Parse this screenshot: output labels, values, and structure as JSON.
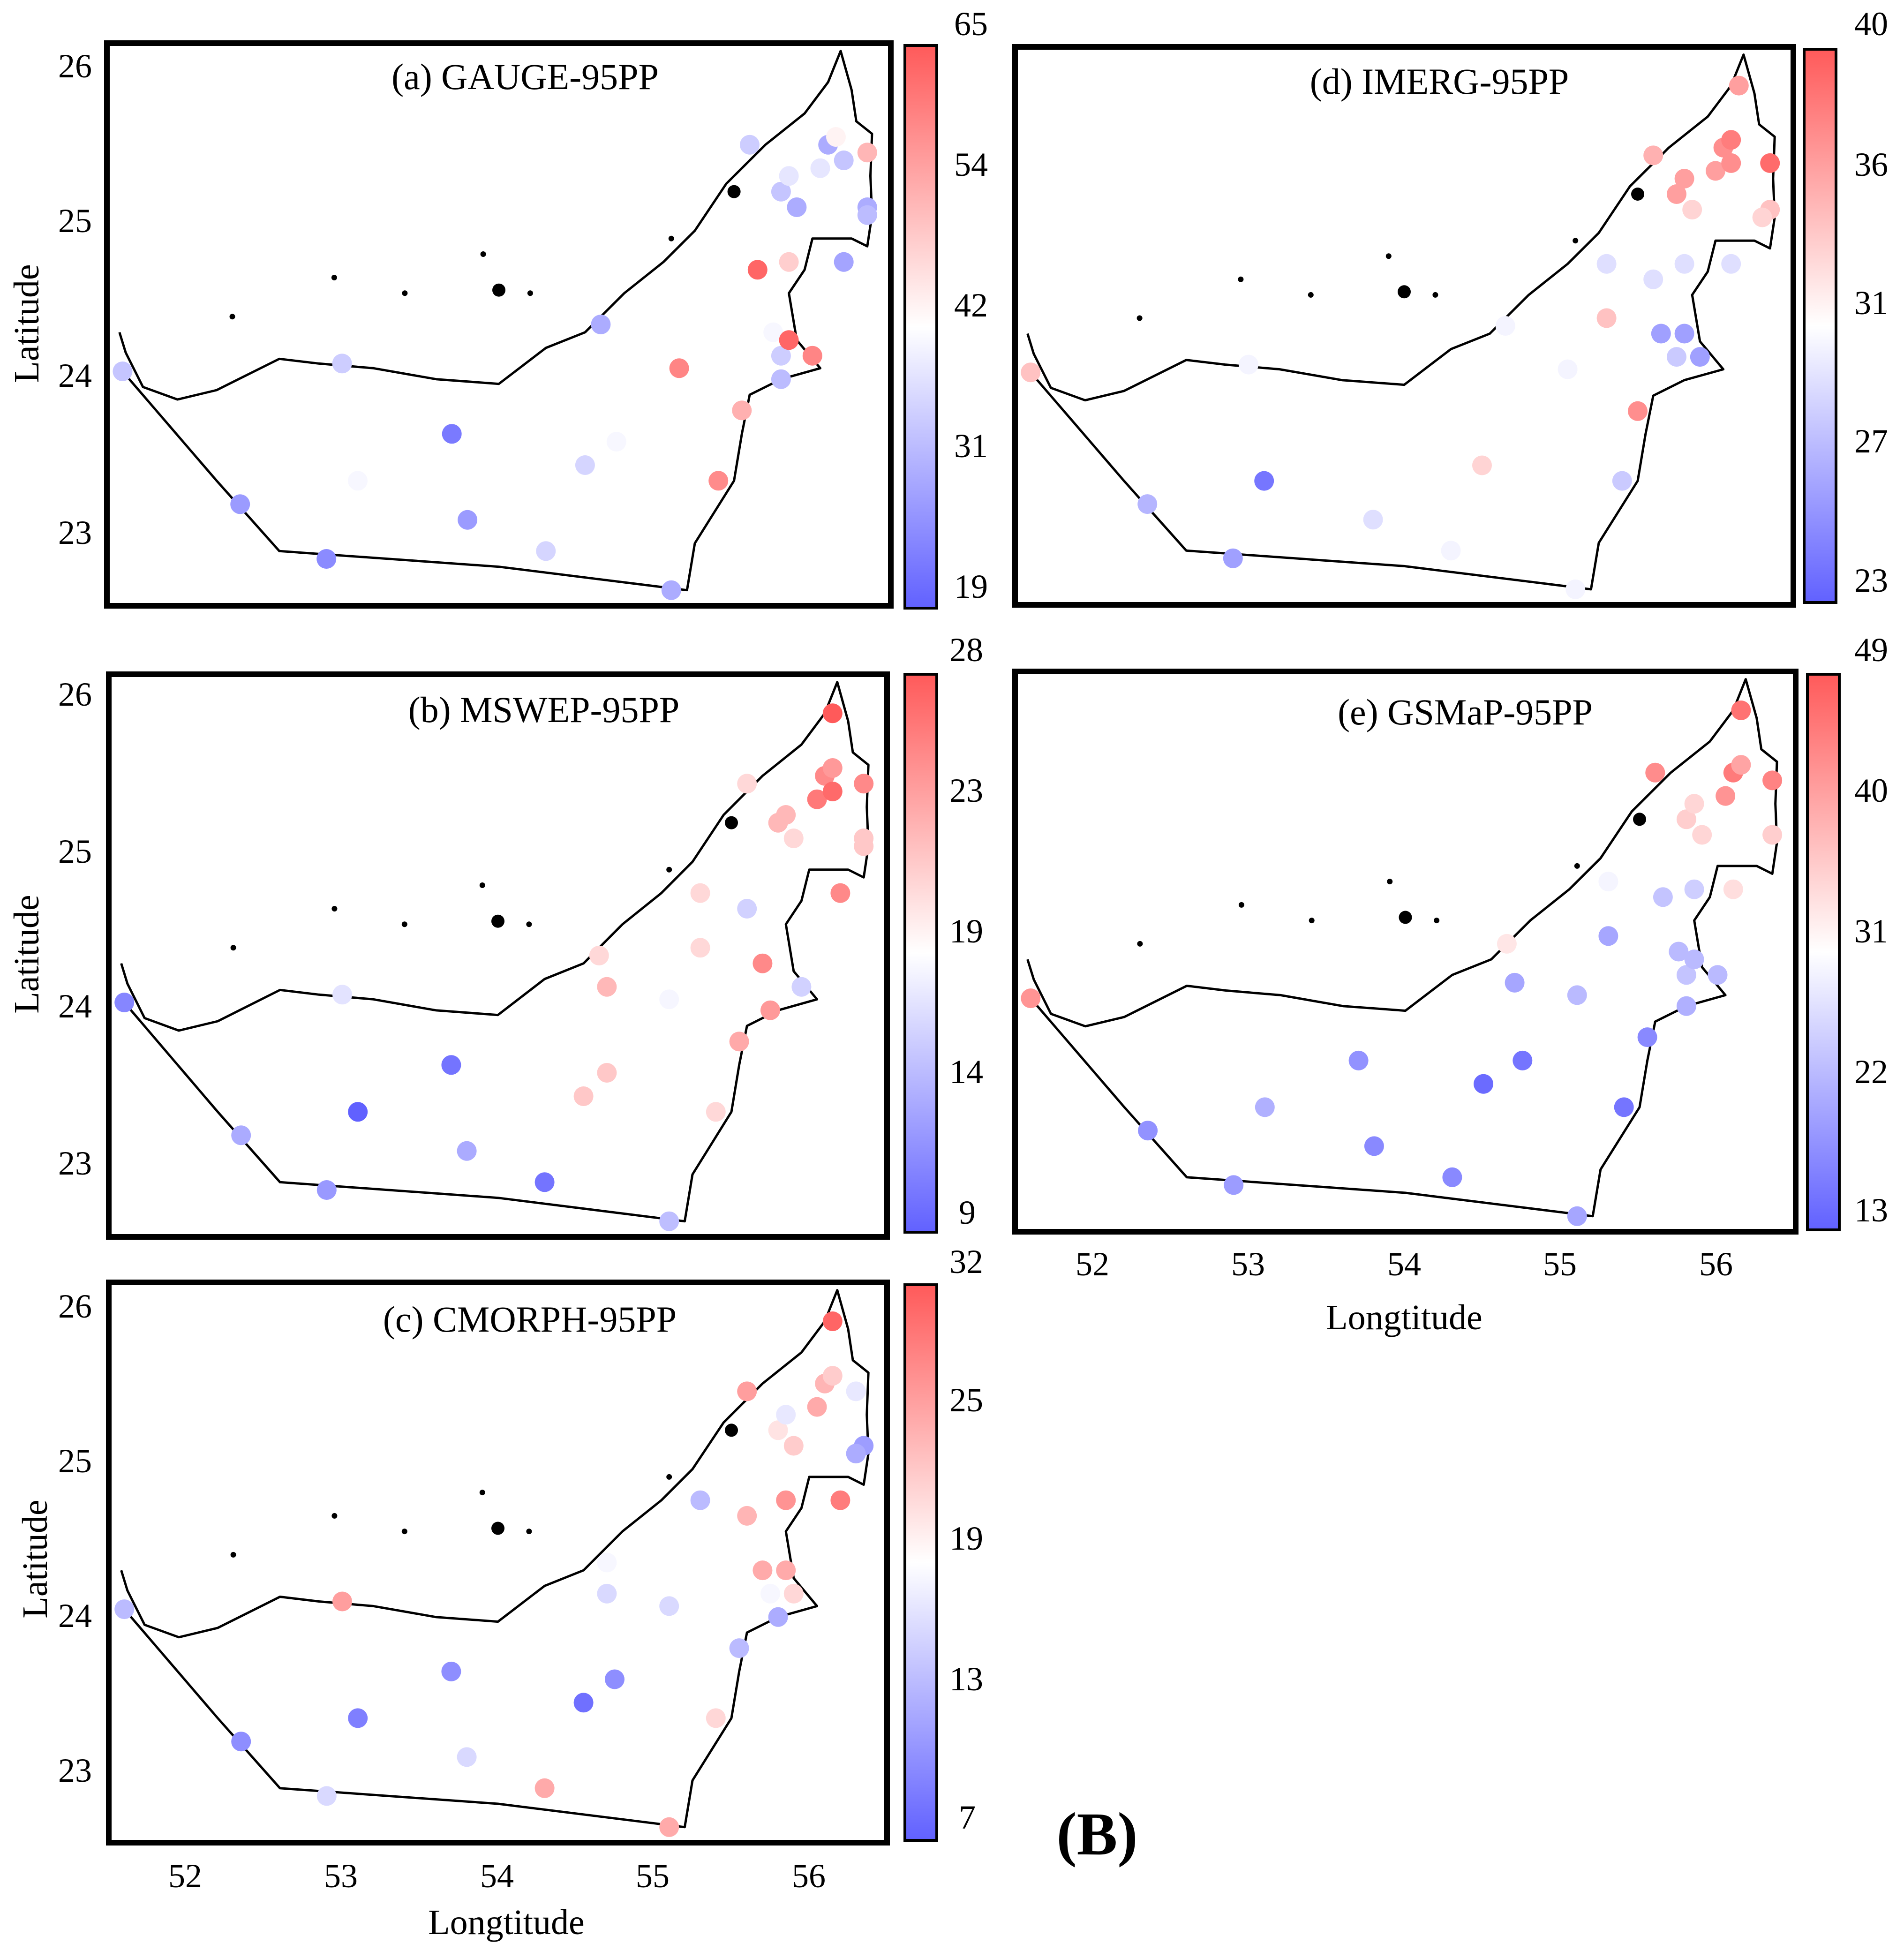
{
  "figure_label": "(B)",
  "colors": {
    "low": "#6161ff",
    "mid": "#ffffff",
    "high": "#ff5a5a",
    "frame": "#000000"
  },
  "axes": {
    "lon_ticks": [
      52,
      53,
      54,
      55,
      56
    ],
    "lat_ticks": [
      23,
      24,
      25,
      26
    ],
    "lon_range": [
      51.5,
      56.5
    ],
    "lat_range": [
      22.6,
      26.2
    ],
    "xlabel": "Longtitude",
    "ylabel": "Latitude"
  },
  "panels": [
    {
      "title": "(a) GAUGE-95PP",
      "colorbar": {
        "ticks": [
          "65",
          "54",
          "42",
          "31",
          "19"
        ],
        "min": 19,
        "max": 65,
        "mid": 38
      },
      "stations": [
        [
          51.6,
          24.1,
          31
        ],
        [
          52.35,
          23.25,
          26
        ],
        [
          52.9,
          22.9,
          24
        ],
        [
          53.0,
          24.15,
          32
        ],
        [
          53.1,
          23.4,
          37
        ],
        [
          53.7,
          23.7,
          22
        ],
        [
          53.8,
          23.15,
          26
        ],
        [
          54.3,
          22.95,
          33
        ],
        [
          54.55,
          23.5,
          33
        ],
        [
          54.75,
          23.65,
          37
        ],
        [
          54.65,
          24.4,
          28
        ],
        [
          55.15,
          24.12,
          58
        ],
        [
          55.1,
          22.7,
          28
        ],
        [
          55.4,
          23.4,
          57
        ],
        [
          55.55,
          23.85,
          51
        ],
        [
          55.65,
          24.75,
          63
        ],
        [
          55.75,
          24.35,
          37
        ],
        [
          55.8,
          24.05,
          30
        ],
        [
          55.8,
          24.2,
          32
        ],
        [
          55.85,
          24.3,
          63
        ],
        [
          56.0,
          24.2,
          58
        ],
        [
          55.6,
          25.55,
          32
        ],
        [
          55.8,
          25.25,
          31
        ],
        [
          55.85,
          25.35,
          35
        ],
        [
          55.9,
          25.15,
          28
        ],
        [
          56.05,
          25.4,
          35
        ],
        [
          56.1,
          25.55,
          28
        ],
        [
          56.15,
          25.6,
          40
        ],
        [
          56.2,
          25.45,
          31
        ],
        [
          56.2,
          24.8,
          27
        ],
        [
          56.35,
          25.5,
          50
        ],
        [
          56.35,
          25.15,
          28
        ],
        [
          56.35,
          25.1,
          30
        ],
        [
          55.85,
          24.8,
          46
        ]
      ]
    },
    {
      "title": "(b) MSWEP-95PP",
      "colorbar": {
        "ticks": [
          "28",
          "23",
          "19",
          "14",
          "9"
        ],
        "min": 9,
        "max": 28,
        "mid": 17.5
      },
      "stations": [
        [
          51.6,
          24.1,
          11
        ],
        [
          52.35,
          23.25,
          13
        ],
        [
          52.9,
          22.9,
          12
        ],
        [
          53.0,
          24.15,
          16
        ],
        [
          53.1,
          23.4,
          9
        ],
        [
          53.7,
          23.7,
          10
        ],
        [
          53.8,
          23.15,
          13
        ],
        [
          54.3,
          22.95,
          10
        ],
        [
          54.55,
          23.5,
          21
        ],
        [
          54.7,
          23.65,
          21
        ],
        [
          54.7,
          24.2,
          22
        ],
        [
          54.65,
          24.4,
          20
        ],
        [
          55.1,
          24.12,
          17
        ],
        [
          55.1,
          22.7,
          14
        ],
        [
          55.3,
          24.8,
          20
        ],
        [
          55.3,
          24.45,
          20
        ],
        [
          55.4,
          23.4,
          20
        ],
        [
          55.55,
          23.85,
          23
        ],
        [
          55.6,
          24.7,
          15
        ],
        [
          55.7,
          24.35,
          25
        ],
        [
          55.75,
          24.05,
          24
        ],
        [
          55.95,
          24.2,
          15
        ],
        [
          55.6,
          25.5,
          20
        ],
        [
          55.8,
          25.25,
          22
        ],
        [
          55.85,
          25.3,
          22
        ],
        [
          55.9,
          25.15,
          20
        ],
        [
          56.05,
          25.4,
          26
        ],
        [
          56.1,
          25.55,
          25
        ],
        [
          56.15,
          25.6,
          24
        ],
        [
          56.15,
          25.45,
          27
        ],
        [
          56.2,
          24.8,
          25
        ],
        [
          56.15,
          25.95,
          28
        ],
        [
          56.35,
          25.5,
          25
        ],
        [
          56.35,
          25.15,
          21
        ],
        [
          56.35,
          25.1,
          21
        ]
      ]
    },
    {
      "title": "(c) CMORPH-95PP",
      "colorbar": {
        "ticks": [
          "32",
          "25",
          "19",
          "13",
          "7"
        ],
        "min": 7,
        "max": 32,
        "mid": 17.5
      },
      "stations": [
        [
          51.6,
          24.1,
          13
        ],
        [
          52.35,
          23.25,
          10
        ],
        [
          52.9,
          22.9,
          15
        ],
        [
          53.0,
          24.15,
          26
        ],
        [
          53.1,
          23.4,
          9
        ],
        [
          53.7,
          23.7,
          10
        ],
        [
          53.8,
          23.15,
          15
        ],
        [
          54.3,
          22.95,
          25
        ],
        [
          54.55,
          23.5,
          8
        ],
        [
          54.75,
          23.65,
          10
        ],
        [
          54.7,
          24.4,
          17
        ],
        [
          54.7,
          24.2,
          15
        ],
        [
          55.1,
          24.12,
          15
        ],
        [
          55.1,
          22.7,
          25
        ],
        [
          55.3,
          24.8,
          13
        ],
        [
          55.4,
          23.4,
          21
        ],
        [
          55.55,
          23.85,
          13
        ],
        [
          55.6,
          24.7,
          24
        ],
        [
          55.7,
          24.35,
          25
        ],
        [
          55.85,
          24.35,
          25
        ],
        [
          55.75,
          24.2,
          17
        ],
        [
          55.8,
          24.05,
          12
        ],
        [
          55.9,
          24.2,
          21
        ],
        [
          55.6,
          25.5,
          26
        ],
        [
          55.8,
          25.25,
          20
        ],
        [
          55.85,
          25.35,
          16
        ],
        [
          55.9,
          25.15,
          22
        ],
        [
          56.05,
          25.4,
          25
        ],
        [
          56.1,
          25.55,
          24
        ],
        [
          56.15,
          25.6,
          22
        ],
        [
          56.15,
          25.95,
          31
        ],
        [
          56.2,
          24.8,
          29
        ],
        [
          56.3,
          25.5,
          16
        ],
        [
          56.35,
          25.15,
          11
        ],
        [
          56.3,
          25.1,
          12
        ],
        [
          55.85,
          24.8,
          27
        ]
      ]
    },
    {
      "title": "(d) IMERG-95PP",
      "colorbar": {
        "ticks": [
          "40",
          "36",
          "31",
          "27",
          "23"
        ],
        "min": 23,
        "max": 40,
        "mid": 30.5
      },
      "stations": [
        [
          51.6,
          24.1,
          34
        ],
        [
          52.35,
          23.25,
          27
        ],
        [
          52.9,
          22.9,
          26
        ],
        [
          53.0,
          24.15,
          30
        ],
        [
          53.1,
          23.4,
          24
        ],
        [
          53.8,
          23.15,
          29
        ],
        [
          54.3,
          22.95,
          30
        ],
        [
          54.5,
          23.5,
          33
        ],
        [
          54.65,
          24.4,
          30
        ],
        [
          55.05,
          24.12,
          30
        ],
        [
          55.3,
          24.45,
          34
        ],
        [
          55.3,
          24.8,
          29
        ],
        [
          55.1,
          22.7,
          30
        ],
        [
          55.4,
          23.4,
          28
        ],
        [
          55.5,
          23.85,
          37
        ],
        [
          55.6,
          24.7,
          29
        ],
        [
          55.65,
          24.35,
          26
        ],
        [
          55.8,
          24.35,
          26
        ],
        [
          55.75,
          24.2,
          28
        ],
        [
          55.9,
          24.2,
          26
        ],
        [
          55.8,
          24.8,
          29
        ],
        [
          56.1,
          24.8,
          29
        ],
        [
          55.6,
          25.5,
          35
        ],
        [
          55.75,
          25.25,
          36
        ],
        [
          55.8,
          25.35,
          36
        ],
        [
          55.85,
          25.15,
          33
        ],
        [
          56.0,
          25.4,
          36
        ],
        [
          56.05,
          25.55,
          37
        ],
        [
          56.1,
          25.6,
          38
        ],
        [
          56.1,
          25.45,
          37
        ],
        [
          56.15,
          25.95,
          36
        ],
        [
          56.35,
          25.45,
          39
        ],
        [
          56.35,
          25.15,
          34
        ],
        [
          56.3,
          25.1,
          33
        ]
      ]
    },
    {
      "title": "(e) GSMaP-95PP",
      "colorbar": {
        "ticks": [
          "49",
          "40",
          "31",
          "22",
          "13"
        ],
        "min": 13,
        "max": 49,
        "mid": 29
      },
      "stations": [
        [
          51.6,
          24.1,
          42
        ],
        [
          52.35,
          23.25,
          18
        ],
        [
          52.9,
          22.9,
          19
        ],
        [
          53.1,
          23.4,
          21
        ],
        [
          53.7,
          23.7,
          18
        ],
        [
          53.8,
          23.15,
          17
        ],
        [
          54.3,
          22.95,
          17
        ],
        [
          54.5,
          23.55,
          14
        ],
        [
          54.75,
          23.7,
          15
        ],
        [
          54.65,
          24.45,
          32
        ],
        [
          54.7,
          24.2,
          20
        ],
        [
          55.1,
          24.12,
          22
        ],
        [
          55.1,
          22.7,
          20
        ],
        [
          55.3,
          24.85,
          28
        ],
        [
          55.3,
          24.5,
          20
        ],
        [
          55.4,
          23.4,
          15
        ],
        [
          55.55,
          23.85,
          17
        ],
        [
          55.65,
          24.75,
          23
        ],
        [
          55.75,
          24.4,
          22
        ],
        [
          55.8,
          24.25,
          23
        ],
        [
          55.8,
          24.05,
          21
        ],
        [
          55.85,
          24.8,
          24
        ],
        [
          55.85,
          24.35,
          22
        ],
        [
          56.0,
          24.25,
          22
        ],
        [
          56.1,
          24.8,
          33
        ],
        [
          55.6,
          25.55,
          43
        ],
        [
          55.8,
          25.25,
          35
        ],
        [
          55.85,
          25.35,
          34
        ],
        [
          55.9,
          25.15,
          34
        ],
        [
          56.05,
          25.4,
          42
        ],
        [
          56.1,
          25.55,
          45
        ],
        [
          56.15,
          25.6,
          40
        ],
        [
          56.15,
          25.95,
          46
        ],
        [
          56.35,
          25.5,
          44
        ],
        [
          56.35,
          25.15,
          35
        ]
      ]
    }
  ]
}
